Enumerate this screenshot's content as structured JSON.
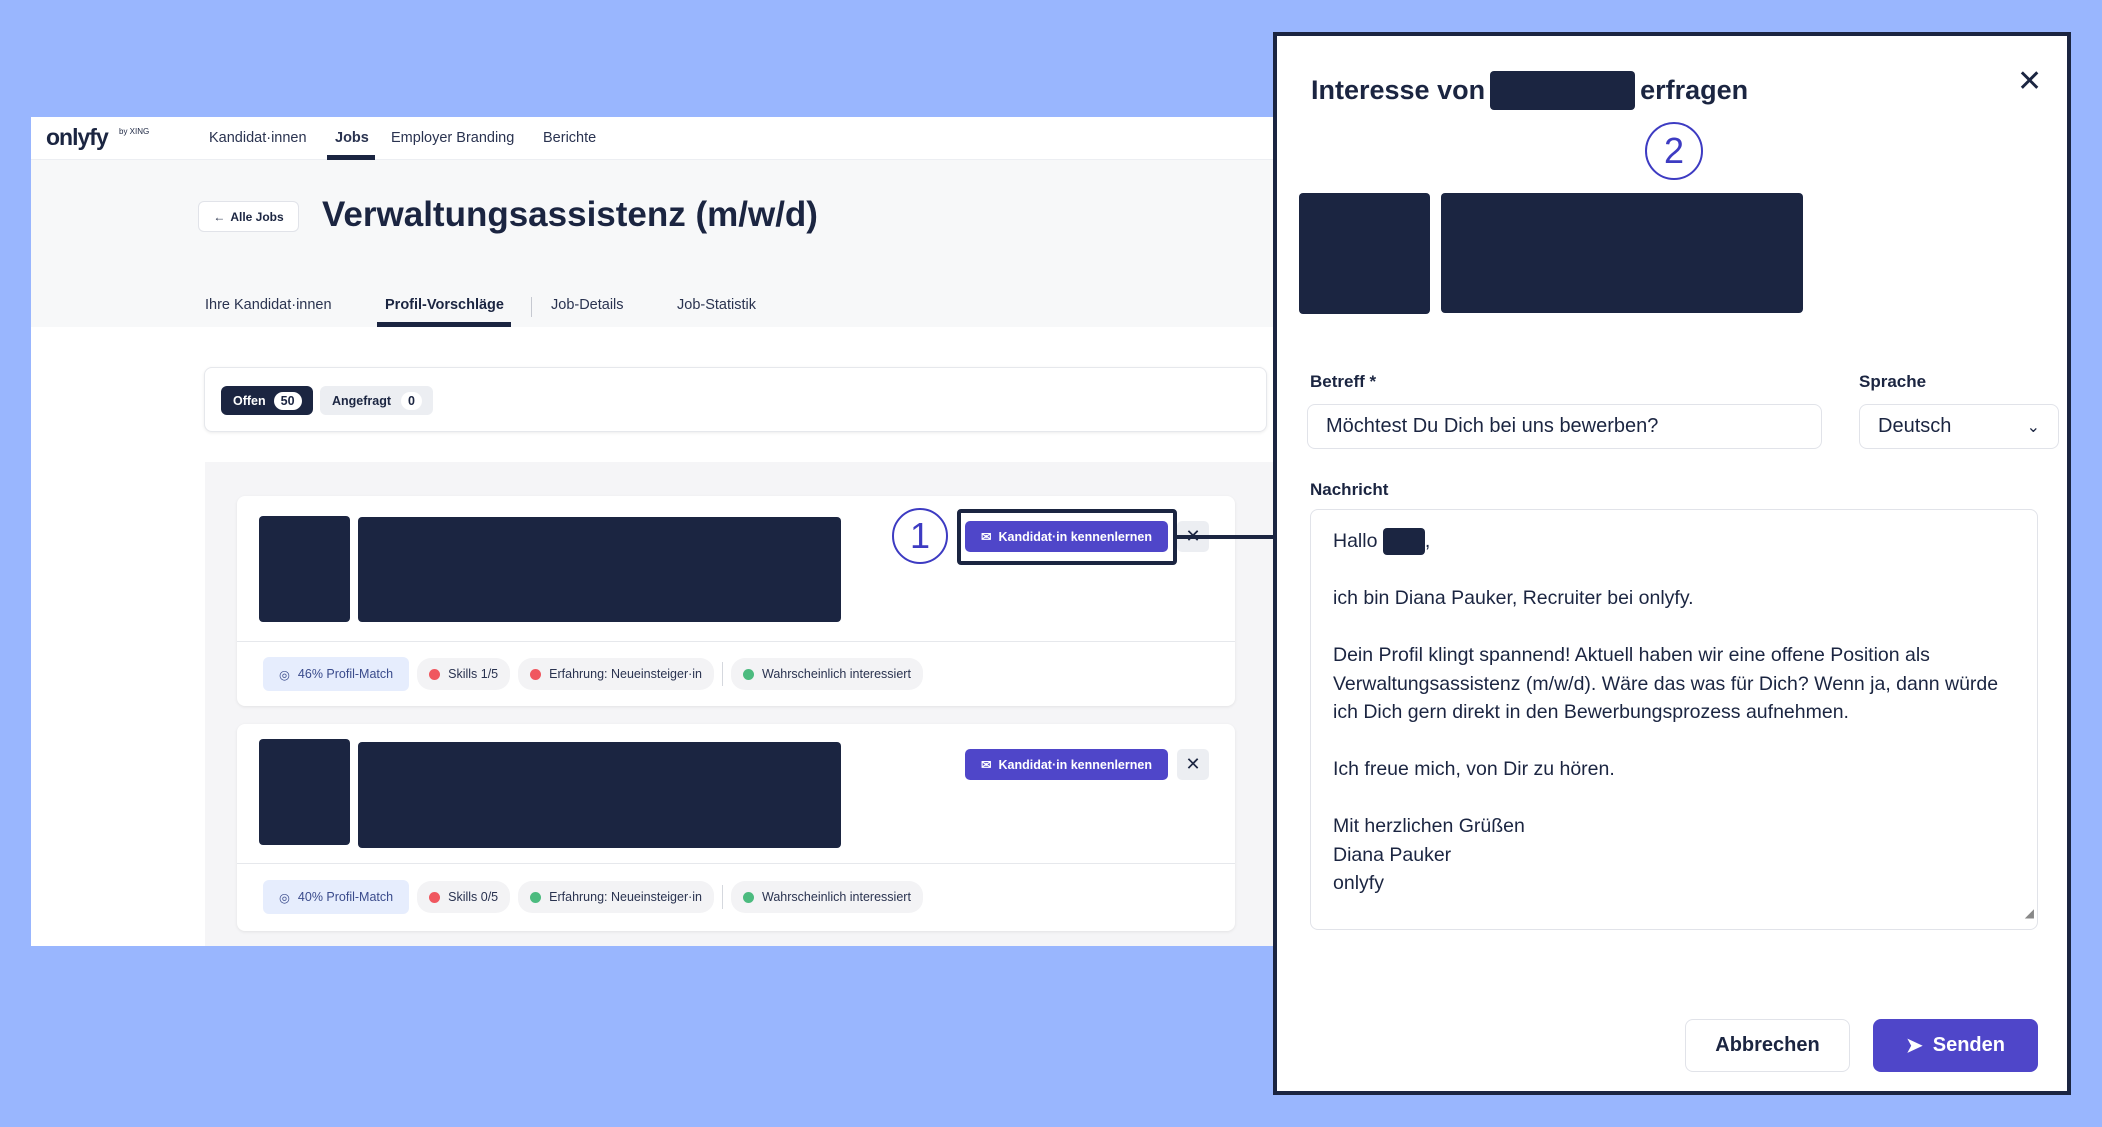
{
  "app": {
    "logo": "onlyfy",
    "logo_sub": "by XING",
    "nav": [
      "Kandidat·innen",
      "Jobs",
      "Employer Branding",
      "Berichte"
    ],
    "nav_active": 1,
    "back_label": "Alle Jobs",
    "job_title": "Verwaltungsassistenz (m/w/d)",
    "tabs": [
      "Ihre Kandidat·innen",
      "Profil-Vorschläge",
      "Job-Details",
      "Job-Statistik"
    ],
    "tab_active": 1,
    "filters": [
      {
        "label": "Offen",
        "count": "50",
        "active": true
      },
      {
        "label": "Angefragt",
        "count": "0",
        "active": false
      }
    ],
    "candidates": [
      {
        "match": "46% Profil-Match",
        "skills": "Skills 1/5",
        "skills_status": "red",
        "experience": "Erfahrung: Neueinsteiger·in",
        "experience_status": "red",
        "interest": "Wahrscheinlich interessiert",
        "interest_status": "green",
        "action": "Kandidat·in kennenlernen"
      },
      {
        "match": "40% Profil-Match",
        "skills": "Skills 0/5",
        "skills_status": "red",
        "experience": "Erfahrung: Neueinsteiger·in",
        "experience_status": "green",
        "interest": "Wahrscheinlich interessiert",
        "interest_status": "green",
        "action": "Kandidat·in kennenlernen"
      }
    ]
  },
  "annotations": {
    "step1": "1",
    "step2": "2"
  },
  "modal": {
    "title_prefix": "Interesse von",
    "title_suffix": "erfragen",
    "subject_label": "Betreff *",
    "subject_value": "Möchtest Du Dich bei uns bewerben?",
    "language_label": "Sprache",
    "language_value": "Deutsch",
    "message_label": "Nachricht",
    "message": {
      "greeting": "Hallo",
      "greeting_end": ",",
      "p1": "ich bin Diana Pauker, Recruiter bei onlyfy.",
      "p2": "Dein Profil klingt spannend! Aktuell haben wir eine offene Position als Verwaltungsassistenz (m/w/d). Wäre das was für Dich? Wenn ja, dann würde ich Dich gern direkt in den Bewerbungsprozess aufnehmen.",
      "p3": "Ich freue mich, von Dir zu hören.",
      "sign1": "Mit herzlichen Grüßen",
      "sign2": "Diana Pauker",
      "sign3": "onlyfy"
    },
    "cancel": "Abbrechen",
    "send": "Senden"
  },
  "colors": {
    "accent": "#4f46c9",
    "navy": "#1b2541",
    "red": "#f0575f",
    "green": "#4cbb7f",
    "background": "#99b6fe"
  }
}
